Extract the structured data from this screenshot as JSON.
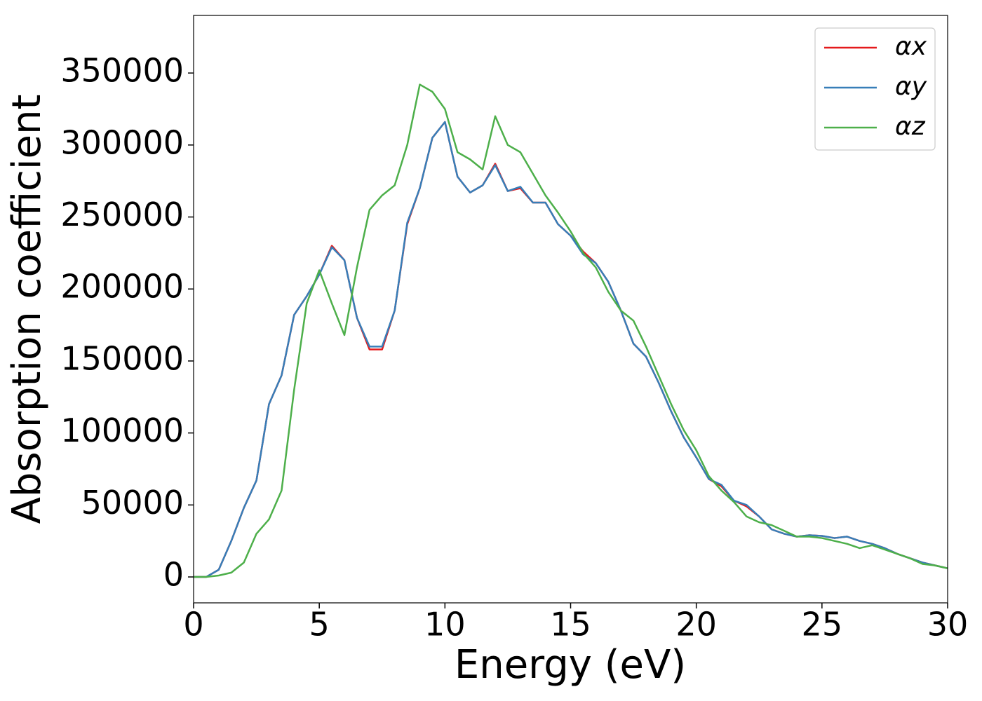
{
  "chart_data": {
    "type": "line",
    "xlabel": "Energy (eV)",
    "ylabel": "Absorption coefficient",
    "x": [
      0,
      0.5,
      1,
      1.5,
      2,
      2.5,
      3,
      3.5,
      4,
      4.5,
      5,
      5.5,
      6,
      6.5,
      7,
      7.5,
      8,
      8.5,
      9,
      9.5,
      10,
      10.5,
      11,
      11.5,
      12,
      12.5,
      13,
      13.5,
      14,
      14.5,
      15,
      15.5,
      16,
      16.5,
      17,
      17.5,
      18,
      18.5,
      19,
      19.5,
      20,
      20.5,
      21,
      21.5,
      22,
      22.5,
      23,
      23.5,
      24,
      24.5,
      25,
      25.5,
      26,
      26.5,
      27,
      27.5,
      28,
      28.5,
      29,
      29.5,
      30
    ],
    "series": [
      {
        "name": "αx",
        "color": "#e41a1c",
        "values": [
          0,
          0,
          5000,
          25000,
          48000,
          67000,
          120000,
          140000,
          182000,
          195000,
          210000,
          230000,
          220000,
          180000,
          158000,
          158000,
          185000,
          245000,
          270000,
          305000,
          316000,
          278000,
          267000,
          272000,
          287000,
          268000,
          270000,
          260000,
          260000,
          245000,
          237000,
          226000,
          218000,
          205000,
          185000,
          162000,
          153000,
          135000,
          115000,
          97000,
          83000,
          68000,
          63000,
          53000,
          49000,
          42000,
          33000,
          30000,
          28000,
          29000,
          28500,
          27000,
          28000,
          25000,
          23000,
          20000,
          16000,
          13000,
          10000,
          8000,
          6000
        ]
      },
      {
        "name": "αy",
        "color": "#377eb8",
        "values": [
          0,
          0,
          5000,
          25000,
          48000,
          67000,
          120000,
          140000,
          182000,
          195000,
          210000,
          229000,
          220000,
          180000,
          160000,
          160000,
          185000,
          246000,
          270000,
          305000,
          316000,
          278000,
          267000,
          272000,
          286000,
          268000,
          271000,
          260000,
          260000,
          245000,
          237000,
          224000,
          218000,
          205000,
          185000,
          162000,
          153000,
          135000,
          115000,
          97000,
          83000,
          68000,
          64000,
          53000,
          50000,
          42000,
          33000,
          30000,
          28000,
          29000,
          28500,
          27000,
          28000,
          25000,
          23000,
          20000,
          16000,
          13000,
          10000,
          8000,
          6000
        ]
      },
      {
        "name": "αz",
        "color": "#4daf4a",
        "values": [
          0,
          0,
          1000,
          3000,
          10000,
          30000,
          40000,
          60000,
          130000,
          190000,
          213000,
          190000,
          168000,
          215000,
          255000,
          265000,
          272000,
          300000,
          342000,
          337000,
          325000,
          295000,
          290000,
          283000,
          320000,
          300000,
          295000,
          280000,
          265000,
          253000,
          240000,
          225000,
          215000,
          198000,
          185000,
          178000,
          160000,
          140000,
          120000,
          102000,
          88000,
          70000,
          60000,
          52000,
          42000,
          38000,
          36000,
          32000,
          28000,
          28000,
          27000,
          25000,
          23000,
          20000,
          22000,
          19000,
          16000,
          13000,
          9000,
          8000,
          6000
        ]
      }
    ],
    "xlim": [
      0,
      30
    ],
    "xticks": [
      0,
      5,
      10,
      15,
      20,
      25,
      30
    ],
    "ylim": [
      -18000,
      390000
    ],
    "yticks": [
      0,
      50000,
      100000,
      150000,
      200000,
      250000,
      300000,
      350000
    ],
    "legend": "upper right",
    "grid": false
  }
}
